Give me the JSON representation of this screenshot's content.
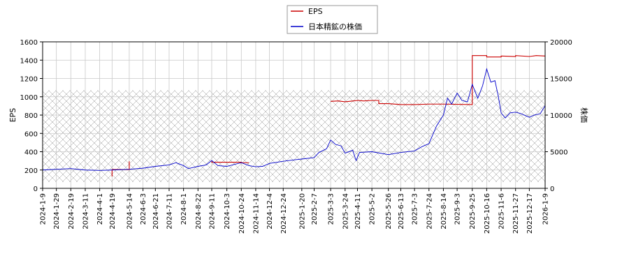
{
  "chart_data": {
    "type": "line",
    "legend_position": "top-center",
    "grid": true,
    "y_left": {
      "label": "EPS",
      "lim": [
        0,
        1600
      ],
      "ticks": [
        0,
        200,
        400,
        600,
        800,
        1000,
        1200,
        1400,
        1600
      ]
    },
    "y_right": {
      "label": "株価",
      "lim": [
        0,
        20000
      ],
      "ticks": [
        0,
        5000,
        10000,
        15000,
        20000
      ]
    },
    "x_ticks": [
      "2024-1-9",
      "2024-1-29",
      "2024-2-19",
      "2024-3-11",
      "2024-4-1",
      "2024-4-19",
      "2024-5-14",
      "2024-6-3",
      "2024-6-21",
      "2024-7-11",
      "2024-8-1",
      "2024-8-22",
      "2024-9-11",
      "2024-10-3",
      "2024-10-24",
      "2024-11-14",
      "2024-12-4",
      "2024-12-24",
      "2025-1-20",
      "2025-2-7",
      "2025-3-3",
      "2025-3-24",
      "2025-4-11",
      "2025-5-2",
      "2025-5-26",
      "2025-6-13",
      "2025-7-3",
      "2025-7-24",
      "2025-8-14",
      "2025-9-3",
      "2025-9-25",
      "2025-10-16",
      "2025-11-6",
      "2025-11-27",
      "2025-12-17",
      "2026-1-9"
    ],
    "shaded_band": {
      "axis": "left",
      "from": 70,
      "to": 1070
    },
    "series": [
      {
        "name": "EPS",
        "axis": "left",
        "color": "#cc0000",
        "points": [
          [
            "2024-1-9",
            130
          ],
          [
            "2024-4-19",
            130
          ],
          [
            "2024-4-19",
            205
          ],
          [
            "2024-5-14",
            205
          ],
          [
            "2024-5-14",
            295
          ],
          [
            "2024-9-11",
            295
          ],
          [
            "2024-9-11",
            285
          ],
          [
            "2024-10-24",
            285
          ],
          [
            "2024-10-24",
            280
          ],
          [
            "2024-11-4",
            280
          ],
          [
            "2025-3-3",
            950
          ],
          [
            "2025-3-14",
            955
          ],
          [
            "2025-3-24",
            945
          ],
          [
            "2025-4-11",
            960
          ],
          [
            "2025-4-20",
            955
          ],
          [
            "2025-5-2",
            960
          ],
          [
            "2025-5-12",
            960
          ],
          [
            "2025-5-12",
            925
          ],
          [
            "2025-5-26",
            925
          ],
          [
            "2025-6-13",
            915
          ],
          [
            "2025-7-3",
            915
          ],
          [
            "2025-7-24",
            920
          ],
          [
            "2025-8-14",
            920
          ],
          [
            "2025-9-25",
            915
          ],
          [
            "2025-9-25",
            1450
          ],
          [
            "2025-10-16",
            1450
          ],
          [
            "2025-10-16",
            1435
          ],
          [
            "2025-11-6",
            1435
          ],
          [
            "2025-11-6",
            1445
          ],
          [
            "2025-11-27",
            1440
          ],
          [
            "2025-11-27",
            1450
          ],
          [
            "2025-12-17",
            1440
          ],
          [
            "2025-12-27",
            1450
          ],
          [
            "2026-1-9",
            1445
          ]
        ]
      },
      {
        "name": "日本精鉱の株価",
        "axis": "right",
        "color": "#0000cc",
        "points": [
          [
            "2024-1-9",
            2500
          ],
          [
            "2024-1-29",
            2600
          ],
          [
            "2024-2-19",
            2700
          ],
          [
            "2024-3-11",
            2500
          ],
          [
            "2024-4-1",
            2450
          ],
          [
            "2024-4-19",
            2500
          ],
          [
            "2024-5-14",
            2600
          ],
          [
            "2024-6-3",
            2750
          ],
          [
            "2024-6-21",
            3000
          ],
          [
            "2024-7-11",
            3200
          ],
          [
            "2024-7-21",
            3500
          ],
          [
            "2024-8-1",
            3100
          ],
          [
            "2024-8-8",
            2700
          ],
          [
            "2024-8-22",
            3000
          ],
          [
            "2024-9-3",
            3200
          ],
          [
            "2024-9-11",
            3800
          ],
          [
            "2024-9-20",
            3100
          ],
          [
            "2024-10-3",
            3000
          ],
          [
            "2024-10-24",
            3500
          ],
          [
            "2024-11-4",
            3100
          ],
          [
            "2024-11-14",
            2950
          ],
          [
            "2024-11-24",
            3000
          ],
          [
            "2024-12-4",
            3400
          ],
          [
            "2024-12-24",
            3700
          ],
          [
            "2025-1-10",
            3900
          ],
          [
            "2025-1-20",
            4000
          ],
          [
            "2025-2-7",
            4200
          ],
          [
            "2025-2-14",
            4900
          ],
          [
            "2025-2-25",
            5400
          ],
          [
            "2025-3-3",
            6600
          ],
          [
            "2025-3-10",
            6000
          ],
          [
            "2025-3-18",
            5800
          ],
          [
            "2025-3-24",
            4800
          ],
          [
            "2025-4-4",
            5200
          ],
          [
            "2025-4-9",
            3800
          ],
          [
            "2025-4-14",
            4900
          ],
          [
            "2025-5-2",
            5000
          ],
          [
            "2025-5-26",
            4600
          ],
          [
            "2025-6-13",
            4900
          ],
          [
            "2025-7-3",
            5100
          ],
          [
            "2025-7-14",
            5700
          ],
          [
            "2025-7-24",
            6100
          ],
          [
            "2025-8-4",
            8500
          ],
          [
            "2025-8-14",
            10000
          ],
          [
            "2025-8-20",
            12300
          ],
          [
            "2025-8-26",
            11500
          ],
          [
            "2025-9-3",
            13000
          ],
          [
            "2025-9-10",
            12000
          ],
          [
            "2025-9-18",
            11800
          ],
          [
            "2025-9-25",
            14200
          ],
          [
            "2025-10-3",
            12300
          ],
          [
            "2025-10-10",
            14000
          ],
          [
            "2025-10-16",
            16300
          ],
          [
            "2025-10-22",
            14500
          ],
          [
            "2025-10-28",
            14700
          ],
          [
            "2025-11-2",
            12500
          ],
          [
            "2025-11-6",
            10300
          ],
          [
            "2025-11-12",
            9600
          ],
          [
            "2025-11-19",
            10300
          ],
          [
            "2025-11-27",
            10400
          ],
          [
            "2025-12-5",
            10200
          ],
          [
            "2025-12-12",
            9900
          ],
          [
            "2025-12-17",
            9700
          ],
          [
            "2025-12-24",
            10000
          ],
          [
            "2026-1-2",
            10200
          ],
          [
            "2026-1-9",
            11300
          ]
        ]
      }
    ]
  }
}
